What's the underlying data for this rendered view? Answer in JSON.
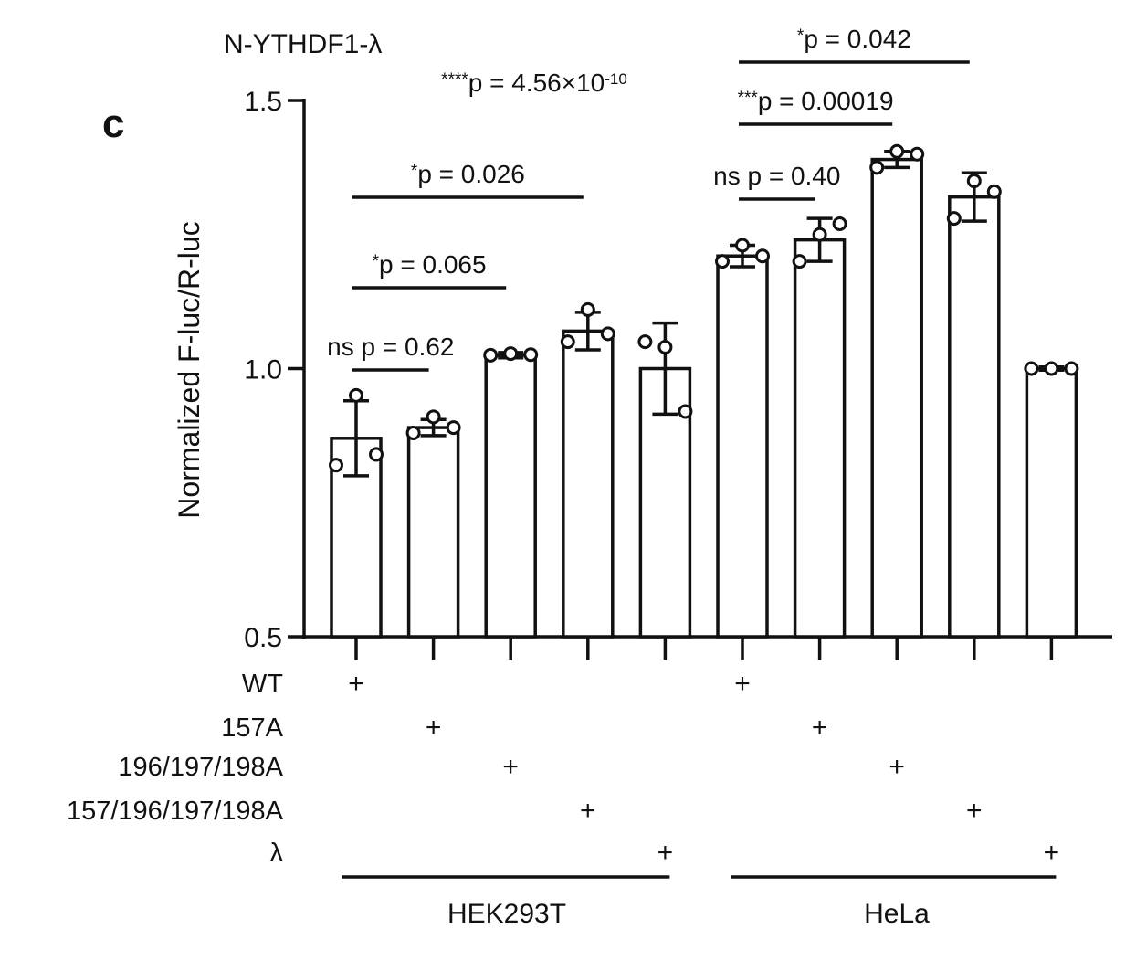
{
  "panel_label": "c",
  "chart_data": {
    "type": "bar",
    "title": "N-YTHDF1-λ",
    "ylabel": "Normalized F-luc/R-luc",
    "ylim": [
      0.5,
      1.5
    ],
    "yticks": [
      "0.5",
      "1.0",
      "1.5"
    ],
    "bars": [
      {
        "cell": "HEK293T",
        "construct": "WT",
        "value": 0.87,
        "error": 0.07,
        "points": [
          0.82,
          0.95,
          0.84
        ]
      },
      {
        "cell": "HEK293T",
        "construct": "157A",
        "value": 0.89,
        "error": 0.015,
        "points": [
          0.88,
          0.91,
          0.89
        ]
      },
      {
        "cell": "HEK293T",
        "construct": "196/197/198A",
        "value": 1.025,
        "error": 0.005,
        "points": [
          1.025,
          1.028,
          1.026
        ]
      },
      {
        "cell": "HEK293T",
        "construct": "157/196/197/198A",
        "value": 1.07,
        "error": 0.035,
        "points": [
          1.05,
          1.11,
          1.065
        ]
      },
      {
        "cell": "HEK293T",
        "construct": "λ",
        "value": 1.0,
        "error": 0.085,
        "points": [
          1.05,
          1.04,
          0.92
        ]
      },
      {
        "cell": "HeLa",
        "construct": "WT",
        "value": 1.21,
        "error": 0.02,
        "points": [
          1.2,
          1.23,
          1.21
        ]
      },
      {
        "cell": "HeLa",
        "construct": "157A",
        "value": 1.24,
        "error": 0.04,
        "points": [
          1.2,
          1.25,
          1.27
        ]
      },
      {
        "cell": "HeLa",
        "construct": "196/197/198A",
        "value": 1.39,
        "error": 0.015,
        "points": [
          1.375,
          1.405,
          1.4
        ]
      },
      {
        "cell": "HeLa",
        "construct": "157/196/197/198A",
        "value": 1.32,
        "error": 0.045,
        "points": [
          1.28,
          1.35,
          1.33
        ]
      },
      {
        "cell": "HeLa",
        "construct": "λ",
        "value": 1.0,
        "error": 0.003,
        "points": [
          1.0,
          1.0,
          1.0
        ]
      }
    ],
    "row_labels": [
      "WT",
      "157A",
      "196/197/198A",
      "157/196/197/198A",
      "λ"
    ],
    "plus_symbol": "+",
    "groups": [
      "HEK293T",
      "HeLa"
    ],
    "comparisons": [
      {
        "from": 0,
        "to": 1,
        "stars": "",
        "label": "ns p = 0.62"
      },
      {
        "from": 0,
        "to": 2,
        "stars": "*",
        "label": "p = 0.065"
      },
      {
        "from": 0,
        "to": 3,
        "stars": "*",
        "label": "p = 0.026"
      },
      {
        "from": 0,
        "to": 4,
        "stars": "****",
        "label": "p = 4.56×10",
        "exponent": "-10",
        "no_bar": true
      },
      {
        "from": 5,
        "to": 6,
        "stars": "",
        "label": "ns p = 0.40"
      },
      {
        "from": 5,
        "to": 7,
        "stars": "***",
        "label": "p = 0.00019"
      },
      {
        "from": 5,
        "to": 8,
        "stars": "*",
        "label": "p = 0.042"
      }
    ],
    "colors": {
      "bar_fill": "#ffffff",
      "stroke": "#111111"
    }
  }
}
